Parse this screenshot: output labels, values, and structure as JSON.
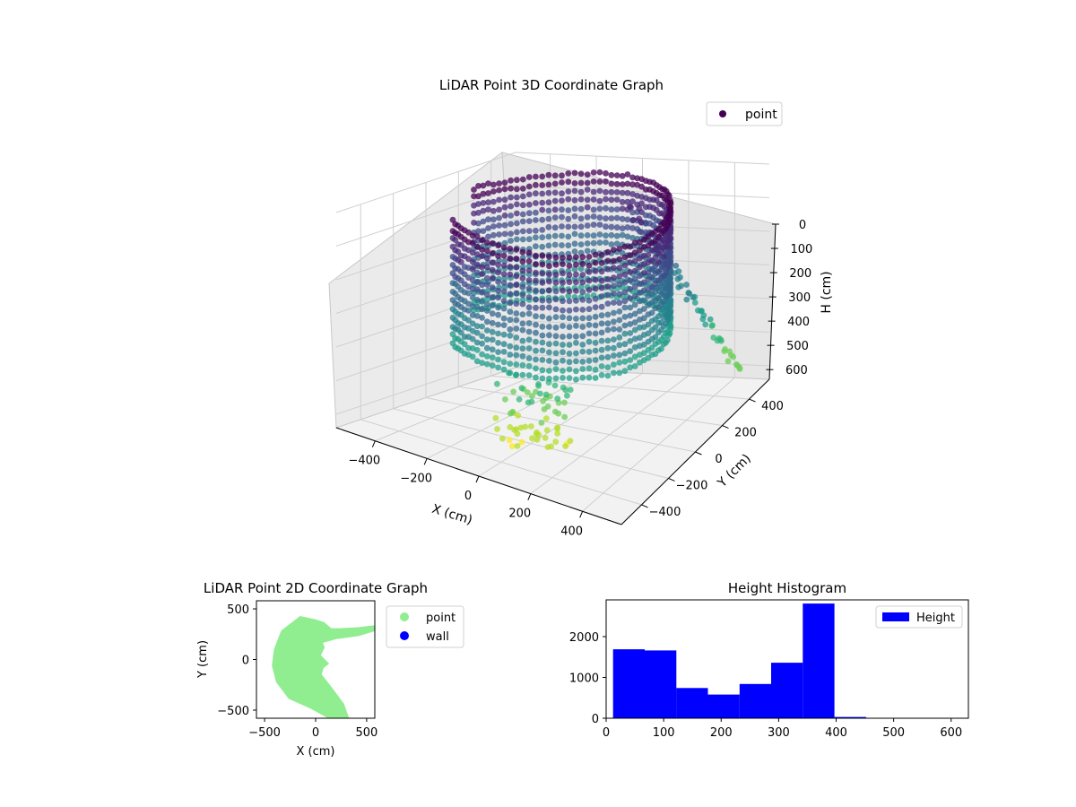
{
  "chart_data": [
    {
      "type": "scatter",
      "title": "LiDAR Point 3D Coordinate Graph",
      "xlabel": "X (cm)",
      "ylabel": "Y (cm)",
      "zlabel": "H (cm)",
      "xlim": [
        -550,
        550
      ],
      "ylim": [
        -550,
        550
      ],
      "zlim": [
        0,
        640
      ],
      "z_inverted": true,
      "x_ticks": [
        -400,
        -200,
        0,
        200,
        400
      ],
      "y_ticks": [
        -400,
        -200,
        0,
        200,
        400
      ],
      "z_ticks": [
        0,
        100,
        200,
        300,
        400,
        500,
        600
      ],
      "colormap": "viridis (by height)",
      "legend": {
        "placement": "top-right",
        "entries": [
          {
            "label": "point",
            "color": "#440154"
          }
        ]
      },
      "grid": true,
      "series": [
        {
          "name": "point",
          "shape": "partial cylinder of points around the sensor, radius about 400 cm, heights about 0–400 cm, open toward +Y, with a tail of points extending to about X 550 / Y 300 and a few points falling to heights about 400–620 cm"
        }
      ]
    },
    {
      "type": "scatter",
      "title": "LiDAR Point 2D Coordinate Graph",
      "xlabel": "X (cm)",
      "ylabel": "Y (cm)",
      "xlim": [
        -580,
        580
      ],
      "ylim": [
        -580,
        580
      ],
      "x_ticks": [
        -500,
        0,
        500
      ],
      "y_ticks": [
        -500,
        0,
        500
      ],
      "legend": {
        "placement": "outside-right",
        "entries": [
          {
            "label": "point",
            "color": "#90ee90"
          },
          {
            "label": "wall",
            "color": "#0000ff"
          }
        ]
      },
      "series": [
        {
          "name": "point",
          "color": "#90ee90",
          "shape": "filled blob from about X -400 to 150, Y -580 to 420, with a thin arm to X 580, Y 320"
        },
        {
          "name": "wall",
          "color": "#0000ff",
          "values": []
        }
      ]
    },
    {
      "type": "bar",
      "subtype": "histogram",
      "title": "Height Histogram",
      "xlabel": "",
      "ylabel": "",
      "xlim": [
        0,
        630
      ],
      "ylim": [
        0,
        2900
      ],
      "x_ticks": [
        0,
        100,
        200,
        300,
        400,
        500,
        600
      ],
      "y_ticks": [
        0,
        1000,
        2000
      ],
      "color": "#0000ff",
      "legend": {
        "placement": "top-right",
        "entries": [
          {
            "label": "Height",
            "color": "#0000ff"
          }
        ]
      },
      "bins": [
        {
          "x0": 12,
          "x1": 67,
          "count": 1690
        },
        {
          "x0": 67,
          "x1": 122,
          "count": 1660
        },
        {
          "x0": 122,
          "x1": 177,
          "count": 740
        },
        {
          "x0": 177,
          "x1": 232,
          "count": 580
        },
        {
          "x0": 232,
          "x1": 287,
          "count": 840
        },
        {
          "x0": 287,
          "x1": 342,
          "count": 1360
        },
        {
          "x0": 342,
          "x1": 397,
          "count": 2810
        },
        {
          "x0": 397,
          "x1": 452,
          "count": 30
        },
        {
          "x0": 452,
          "x1": 507,
          "count": 5
        },
        {
          "x0": 507,
          "x1": 562,
          "count": 3
        },
        {
          "x0": 562,
          "x1": 617,
          "count": 2
        }
      ]
    }
  ]
}
